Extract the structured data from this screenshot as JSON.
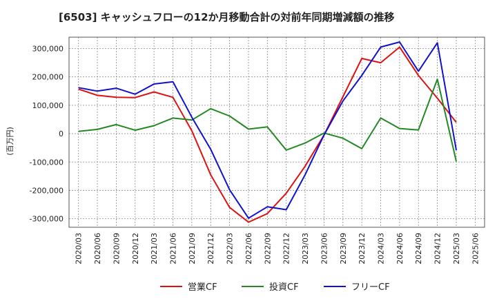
{
  "chart_data": {
    "type": "line",
    "title": "[6503]  キャッシュフローの12か月移動合計の対前年同期増減額の推移",
    "ylabel": "(百万円)",
    "xlabel": "",
    "ylim": [
      -330000,
      340000
    ],
    "yticks": [
      300000,
      200000,
      100000,
      0,
      -100000,
      -200000,
      -300000
    ],
    "ytick_labels": [
      "300,000",
      "200,000",
      "100,000",
      "0",
      "-100,000",
      "-200,000",
      "-300,000"
    ],
    "x_tick_labels": [
      "2020/03",
      "2020/06",
      "2020/09",
      "2020/12",
      "2021/03",
      "2021/06",
      "2021/09",
      "2021/12",
      "2022/03",
      "2022/06",
      "2022/09",
      "2022/12",
      "2023/03",
      "2023/06",
      "2023/09",
      "2023/12",
      "2024/03",
      "2024/06",
      "2024/09",
      "2024/12",
      "2025/03",
      "2025/06"
    ],
    "grid": true,
    "legend_position": "bottom",
    "series": [
      {
        "name": "営業CF",
        "color": "#dd1111",
        "values": [
          157000,
          135000,
          128000,
          127000,
          147000,
          128000,
          10000,
          -145000,
          -260000,
          -312000,
          -282000,
          -210000,
          -115000,
          -5000,
          130000,
          265000,
          250000,
          305000,
          205000,
          125000,
          40000
        ]
      },
      {
        "name": "投資CF",
        "color": "#228822",
        "values": [
          8000,
          15000,
          32000,
          12000,
          28000,
          55000,
          48000,
          88000,
          62000,
          16000,
          24000,
          -58000,
          -33000,
          2000,
          -16000,
          -53000,
          55000,
          18000,
          13000,
          192000,
          -98000
        ]
      },
      {
        "name": "フリーCF",
        "color": "#1111cc",
        "values": [
          162000,
          150000,
          160000,
          139000,
          175000,
          183000,
          58000,
          -55000,
          -198000,
          -298000,
          -258000,
          -268000,
          -145000,
          -5000,
          115000,
          205000,
          305000,
          323000,
          220000,
          320000,
          -58000
        ]
      }
    ]
  }
}
